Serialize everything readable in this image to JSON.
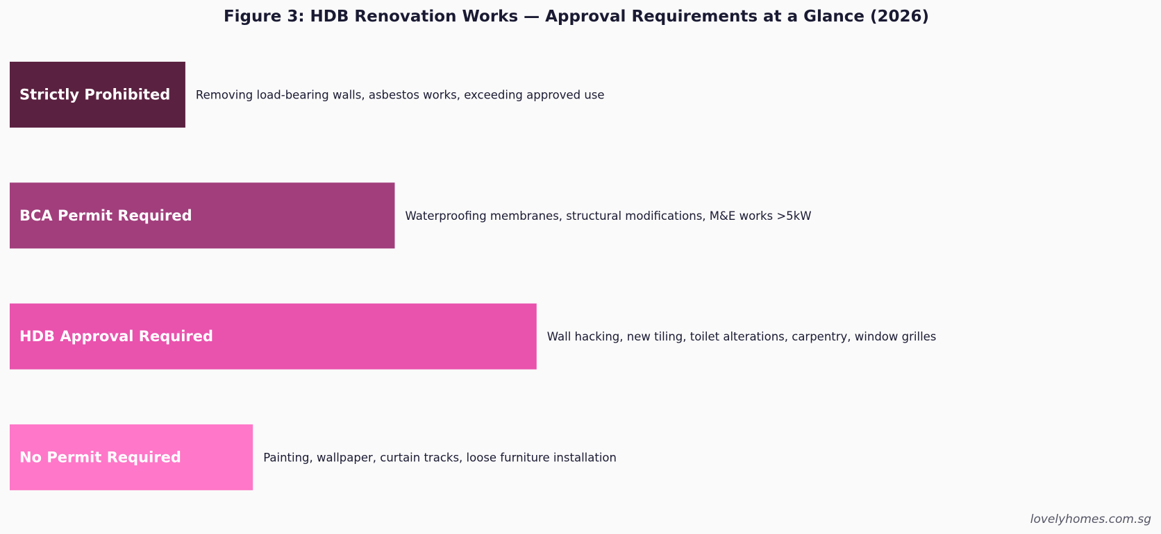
{
  "chart_data": {
    "type": "bar",
    "orientation": "horizontal",
    "title": "Figure 3: HDB Renovation Works — Approval Requirements at a Glance (2026)",
    "xlabel": "",
    "ylabel": "",
    "grid": false,
    "categories": [
      "Strictly Prohibited",
      "BCA Permit Required",
      "HDB Approval Required",
      "No Permit Required"
    ],
    "values": [
      2.6,
      5.7,
      7.8,
      3.6
    ],
    "xlim": [
      0,
      16.9
    ],
    "descriptions": [
      "Removing load-bearing walls, asbestos works, exceeding approved use",
      "Waterproofing membranes, structural modifications, M&E works >5kW",
      "Wall hacking, new tiling, toilet alterations, carpentry, window grilles",
      "Painting, wallpaper, curtain tracks, loose furniture installation"
    ],
    "colors": [
      "#5b2140",
      "#a23e7c",
      "#e952ad",
      "#ff77c8"
    ]
  },
  "watermark": "lovelyhomes.com.sg"
}
